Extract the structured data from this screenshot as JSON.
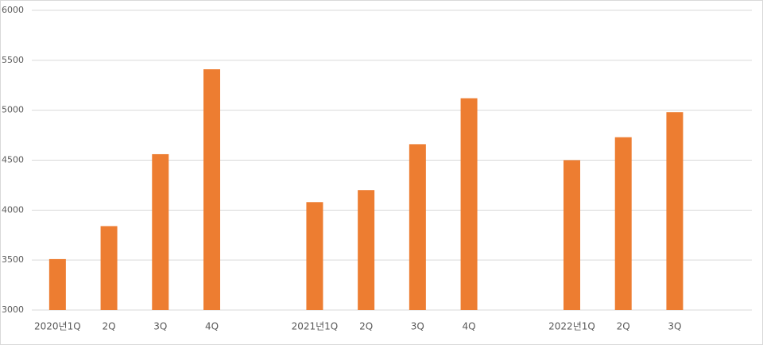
{
  "chart_data": {
    "type": "bar",
    "categories": [
      "2020년1Q",
      "2Q",
      "3Q",
      "4Q",
      null,
      "2021년1Q",
      "2Q",
      "3Q",
      "4Q",
      null,
      "2022년1Q",
      "2Q",
      "3Q",
      null
    ],
    "values": [
      3510,
      3840,
      4560,
      5410,
      null,
      4080,
      4200,
      4660,
      5120,
      null,
      4500,
      4730,
      4980,
      null
    ],
    "color": "#ed7d31",
    "ylim": [
      3000,
      6000
    ],
    "yticks": [
      3000,
      3500,
      4000,
      4500,
      5000,
      5500,
      6000
    ],
    "grid": true
  }
}
